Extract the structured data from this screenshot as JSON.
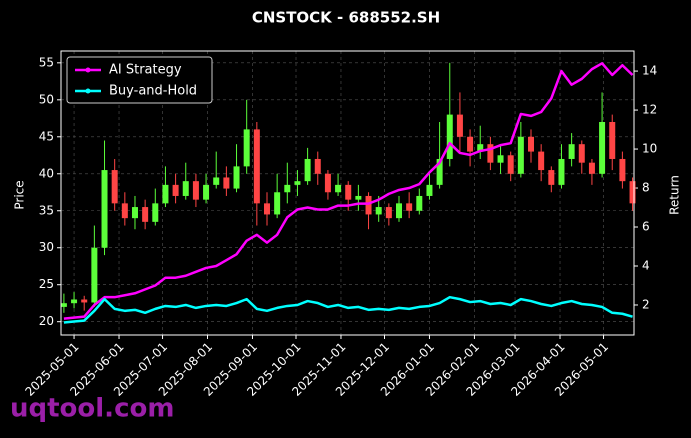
{
  "chart_data": {
    "type": "candlestick",
    "title": "CNSTOCK - 688552.SH",
    "ylabel": "Price",
    "y2label": "Return",
    "x": [
      "2025-04-24",
      "2025-05-01",
      "2025-05-08",
      "2025-05-15",
      "2025-05-22",
      "2025-05-29",
      "2025-06-05",
      "2025-06-12",
      "2025-06-19",
      "2025-06-26",
      "2025-07-03",
      "2025-07-10",
      "2025-07-17",
      "2025-07-24",
      "2025-07-31",
      "2025-08-07",
      "2025-08-14",
      "2025-08-21",
      "2025-08-28",
      "2025-09-04",
      "2025-09-11",
      "2025-09-18",
      "2025-09-25",
      "2025-10-02",
      "2025-10-09",
      "2025-10-16",
      "2025-10-23",
      "2025-10-30",
      "2025-11-06",
      "2025-11-13",
      "2025-11-20",
      "2025-11-27",
      "2025-12-04",
      "2025-12-11",
      "2025-12-18",
      "2025-12-25",
      "2026-01-01",
      "2026-01-08",
      "2026-01-15",
      "2026-01-22",
      "2026-01-29",
      "2026-02-05",
      "2026-02-12",
      "2026-02-19",
      "2026-02-26",
      "2026-03-05",
      "2026-03-12",
      "2026-03-19",
      "2026-03-26",
      "2026-04-02",
      "2026-04-09",
      "2026-04-16",
      "2026-04-23",
      "2026-04-30",
      "2026-05-07",
      "2026-05-14",
      "2026-05-21"
    ],
    "open": [
      22.0,
      22.5,
      23.0,
      22.6,
      30.0,
      40.5,
      36.0,
      34.0,
      35.5,
      33.5,
      36.0,
      38.5,
      37.0,
      39.0,
      36.5,
      38.5,
      39.5,
      38.0,
      41.0,
      46.0,
      36.0,
      34.5,
      37.5,
      38.5,
      39.0,
      42.0,
      40.0,
      37.5,
      38.5,
      36.5,
      37.0,
      34.5,
      35.5,
      34.0,
      36.0,
      35.0,
      37.0,
      38.5,
      42.0,
      48.0,
      45.0,
      43.0,
      44.0,
      41.5,
      42.5,
      40.0,
      45.0,
      43.0,
      40.5,
      38.5,
      42.0,
      44.0,
      41.5,
      40.0,
      47.0,
      42.0,
      39.0
    ],
    "high": [
      23.8,
      24.0,
      23.5,
      33.0,
      44.5,
      42.0,
      37.5,
      37.0,
      36.5,
      38.0,
      41.0,
      40.0,
      41.5,
      40.0,
      40.0,
      43.0,
      41.0,
      44.0,
      50.0,
      47.0,
      37.5,
      40.0,
      41.5,
      40.5,
      43.5,
      43.0,
      40.5,
      40.0,
      39.0,
      38.5,
      37.5,
      37.0,
      36.0,
      37.0,
      37.5,
      38.0,
      40.0,
      47.0,
      55.0,
      51.0,
      46.0,
      46.5,
      45.0,
      44.0,
      43.0,
      47.0,
      46.0,
      44.0,
      41.0,
      44.0,
      45.5,
      44.5,
      42.0,
      51.0,
      48.0,
      43.0,
      39.5
    ],
    "low": [
      21.2,
      21.8,
      21.5,
      22.0,
      29.0,
      35.0,
      33.0,
      32.5,
      32.5,
      33.0,
      35.5,
      36.0,
      36.5,
      35.5,
      36.0,
      38.0,
      37.0,
      37.5,
      40.0,
      33.0,
      33.0,
      34.0,
      36.0,
      37.0,
      38.5,
      38.5,
      36.5,
      37.0,
      35.0,
      35.0,
      32.5,
      33.5,
      33.0,
      33.5,
      34.0,
      34.5,
      36.5,
      38.0,
      41.0,
      43.0,
      41.0,
      42.0,
      40.5,
      40.0,
      39.0,
      39.5,
      41.5,
      39.0,
      37.5,
      38.0,
      41.0,
      40.0,
      38.5,
      39.5,
      40.5,
      38.0,
      35.0
    ],
    "close": [
      22.5,
      23.0,
      22.6,
      30.0,
      40.5,
      36.0,
      34.0,
      35.5,
      33.5,
      36.0,
      38.5,
      37.0,
      39.0,
      36.5,
      38.5,
      39.5,
      38.0,
      41.0,
      46.0,
      36.0,
      34.5,
      37.5,
      38.5,
      39.0,
      42.0,
      40.0,
      37.5,
      38.5,
      36.5,
      37.0,
      34.5,
      35.5,
      34.0,
      36.0,
      35.0,
      37.0,
      38.5,
      42.0,
      48.0,
      45.0,
      43.0,
      44.0,
      41.5,
      42.5,
      40.0,
      45.0,
      43.0,
      40.5,
      38.5,
      42.0,
      44.0,
      41.5,
      40.0,
      47.0,
      42.0,
      39.0,
      36.0
    ],
    "up_color": "#5cff3a",
    "down_color": "#ff4545",
    "series": [
      {
        "name": "AI Strategy",
        "color": "#ff00ff",
        "axis": "y2",
        "values": [
          1.3,
          1.35,
          1.4,
          2.0,
          2.4,
          2.4,
          2.5,
          2.6,
          2.8,
          3.0,
          3.4,
          3.4,
          3.5,
          3.7,
          3.9,
          4.0,
          4.3,
          4.6,
          5.3,
          5.6,
          5.2,
          5.6,
          6.5,
          6.9,
          7.0,
          6.9,
          6.9,
          7.1,
          7.1,
          7.2,
          7.2,
          7.4,
          7.7,
          7.9,
          8.0,
          8.2,
          8.8,
          9.3,
          10.3,
          9.8,
          9.7,
          9.9,
          10.0,
          10.2,
          10.3,
          11.8,
          11.7,
          11.9,
          12.6,
          14.0,
          13.3,
          13.6,
          14.1,
          14.4,
          13.8,
          14.3,
          13.8
        ]
      },
      {
        "name": "Buy-and-Hold",
        "color": "#00ffff",
        "axis": "y2",
        "values": [
          1.1,
          1.15,
          1.2,
          1.7,
          2.3,
          1.8,
          1.7,
          1.75,
          1.6,
          1.8,
          1.95,
          1.9,
          2.0,
          1.85,
          1.95,
          2.0,
          1.95,
          2.1,
          2.3,
          1.8,
          1.7,
          1.85,
          1.95,
          2.0,
          2.2,
          2.1,
          1.9,
          2.0,
          1.85,
          1.9,
          1.75,
          1.8,
          1.75,
          1.85,
          1.8,
          1.9,
          1.95,
          2.1,
          2.4,
          2.3,
          2.15,
          2.2,
          2.05,
          2.1,
          2.0,
          2.3,
          2.2,
          2.05,
          1.95,
          2.1,
          2.2,
          2.05,
          2.0,
          1.9,
          1.6,
          1.55,
          1.4
        ]
      }
    ],
    "xlim": [
      "2025-04-22",
      "2026-05-22"
    ],
    "xticks": [
      "2025-05-01",
      "2025-06-01",
      "2025-07-01",
      "2025-08-01",
      "2025-09-01",
      "2025-10-01",
      "2025-11-01",
      "2025-12-01",
      "2026-01-01",
      "2026-02-01",
      "2026-03-01",
      "2026-04-01",
      "2026-05-01"
    ],
    "ylim": [
      18.2,
      56.6
    ],
    "yticks": [
      20,
      25,
      30,
      35,
      40,
      45,
      50,
      55
    ],
    "y2lim": [
      0.46,
      15.03
    ],
    "y2ticks": [
      2,
      4,
      6,
      8,
      10,
      12,
      14
    ],
    "grid": true,
    "legend": "upper left"
  },
  "watermark": "uqtool.com"
}
